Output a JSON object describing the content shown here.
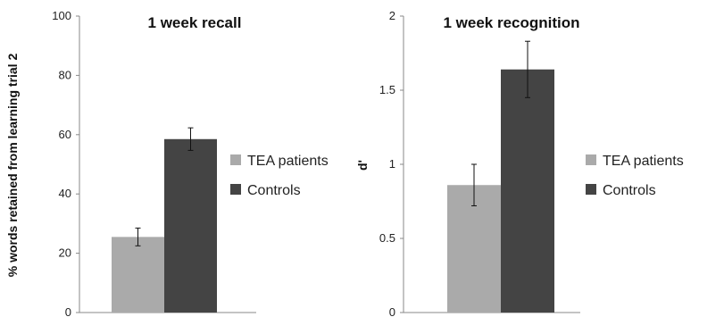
{
  "chart_data": [
    {
      "type": "bar",
      "title": "1 week recall",
      "ylabel": "% words retained from learning trial 2",
      "xlabel": "",
      "ylim": [
        0,
        100
      ],
      "yticks": [
        "0",
        "20",
        "40",
        "60",
        "80",
        "100"
      ],
      "grid": false,
      "legend_position": "right",
      "series": [
        {
          "name": "TEA patients",
          "values": [
            25.5
          ],
          "error": [
            3
          ],
          "color": "#aaaaaa"
        },
        {
          "name": "Controls",
          "values": [
            58.5
          ],
          "error": [
            3.8
          ],
          "color": "#444444"
        }
      ]
    },
    {
      "type": "bar",
      "title": "1 week recognition",
      "ylabel": "d'",
      "xlabel": "",
      "ylim": [
        0,
        2
      ],
      "yticks": [
        "0",
        "0.5",
        "1",
        "1.5",
        "2"
      ],
      "grid": false,
      "legend_position": "right",
      "series": [
        {
          "name": "TEA patients",
          "values": [
            0.86
          ],
          "error": [
            0.14
          ],
          "color": "#aaaaaa"
        },
        {
          "name": "Controls",
          "values": [
            1.64
          ],
          "error": [
            0.19
          ],
          "color": "#444444"
        }
      ]
    }
  ]
}
